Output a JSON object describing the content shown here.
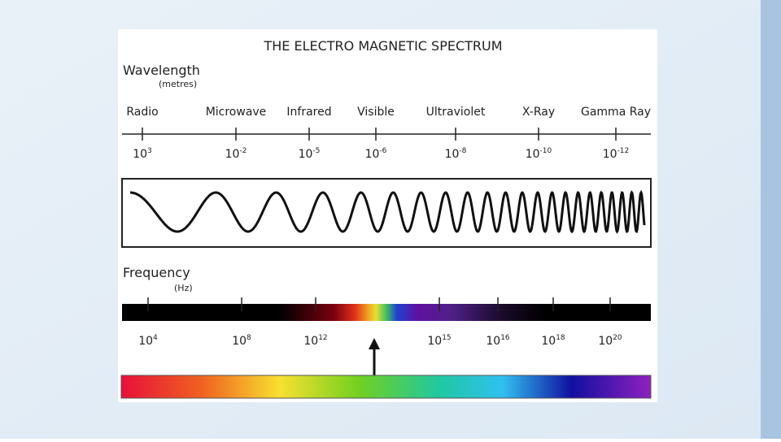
{
  "title": "THE ELECTRO MAGNETIC SPECTRUM",
  "wavelength": {
    "label": "Wavelength",
    "unit": "(metres)",
    "bands": [
      {
        "name": "Radio",
        "base": "10",
        "exp": "3"
      },
      {
        "name": "Microwave",
        "base": "10",
        "exp": "-2"
      },
      {
        "name": "Infrared",
        "base": "10",
        "exp": "-5"
      },
      {
        "name": "Visible",
        "base": "10",
        "exp": "-6"
      },
      {
        "name": "Ultraviolet",
        "base": "10",
        "exp": "-8"
      },
      {
        "name": "X-Ray",
        "base": "10",
        "exp": "-10"
      },
      {
        "name": "Gamma Ray",
        "base": "10",
        "exp": "-12"
      }
    ]
  },
  "frequency": {
    "label": "Frequency",
    "unit": "(Hz)",
    "ticks": [
      {
        "base": "10",
        "exp": "4"
      },
      {
        "base": "10",
        "exp": "8"
      },
      {
        "base": "10",
        "exp": "12"
      },
      {
        "base": "10",
        "exp": "15"
      },
      {
        "base": "10",
        "exp": "16"
      },
      {
        "base": "10",
        "exp": "18"
      },
      {
        "base": "10",
        "exp": "20"
      }
    ]
  }
}
